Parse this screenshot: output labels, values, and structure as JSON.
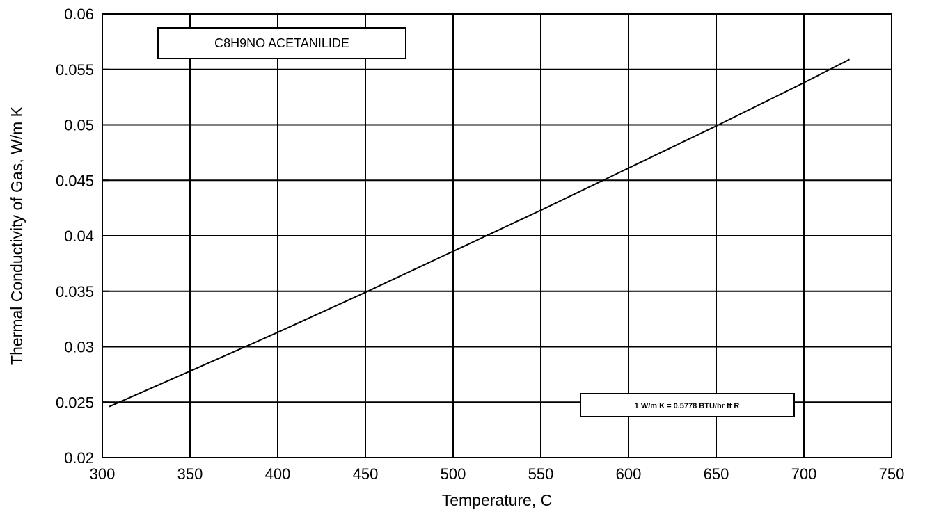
{
  "chart_data": {
    "type": "line",
    "title": "",
    "xlabel": "Temperature, C",
    "ylabel": "Thermal Conductivity of Gas, W/m K",
    "xlim": [
      300,
      750
    ],
    "ylim": [
      0.02,
      0.06
    ],
    "x_ticks": [
      "300",
      "350",
      "400",
      "450",
      "500",
      "550",
      "600",
      "650",
      "700",
      "750"
    ],
    "y_ticks": [
      "0.02",
      "0.025",
      "0.03",
      "0.035",
      "0.04",
      "0.045",
      "0.05",
      "0.055",
      "0.06"
    ],
    "grid": true,
    "series": [
      {
        "x": [
          304,
          350,
          400,
          450,
          500,
          550,
          600,
          650,
          700,
          726
        ],
        "y": [
          0.0246,
          0.0278,
          0.0313,
          0.0349,
          0.0386,
          0.0423,
          0.0461,
          0.0499,
          0.0538,
          0.0559
        ]
      }
    ],
    "annotations": {
      "compound": "C8H9NO  ACETANILIDE",
      "conversion": "1 W/m K = 0.5778 BTU/hr ft R"
    }
  }
}
